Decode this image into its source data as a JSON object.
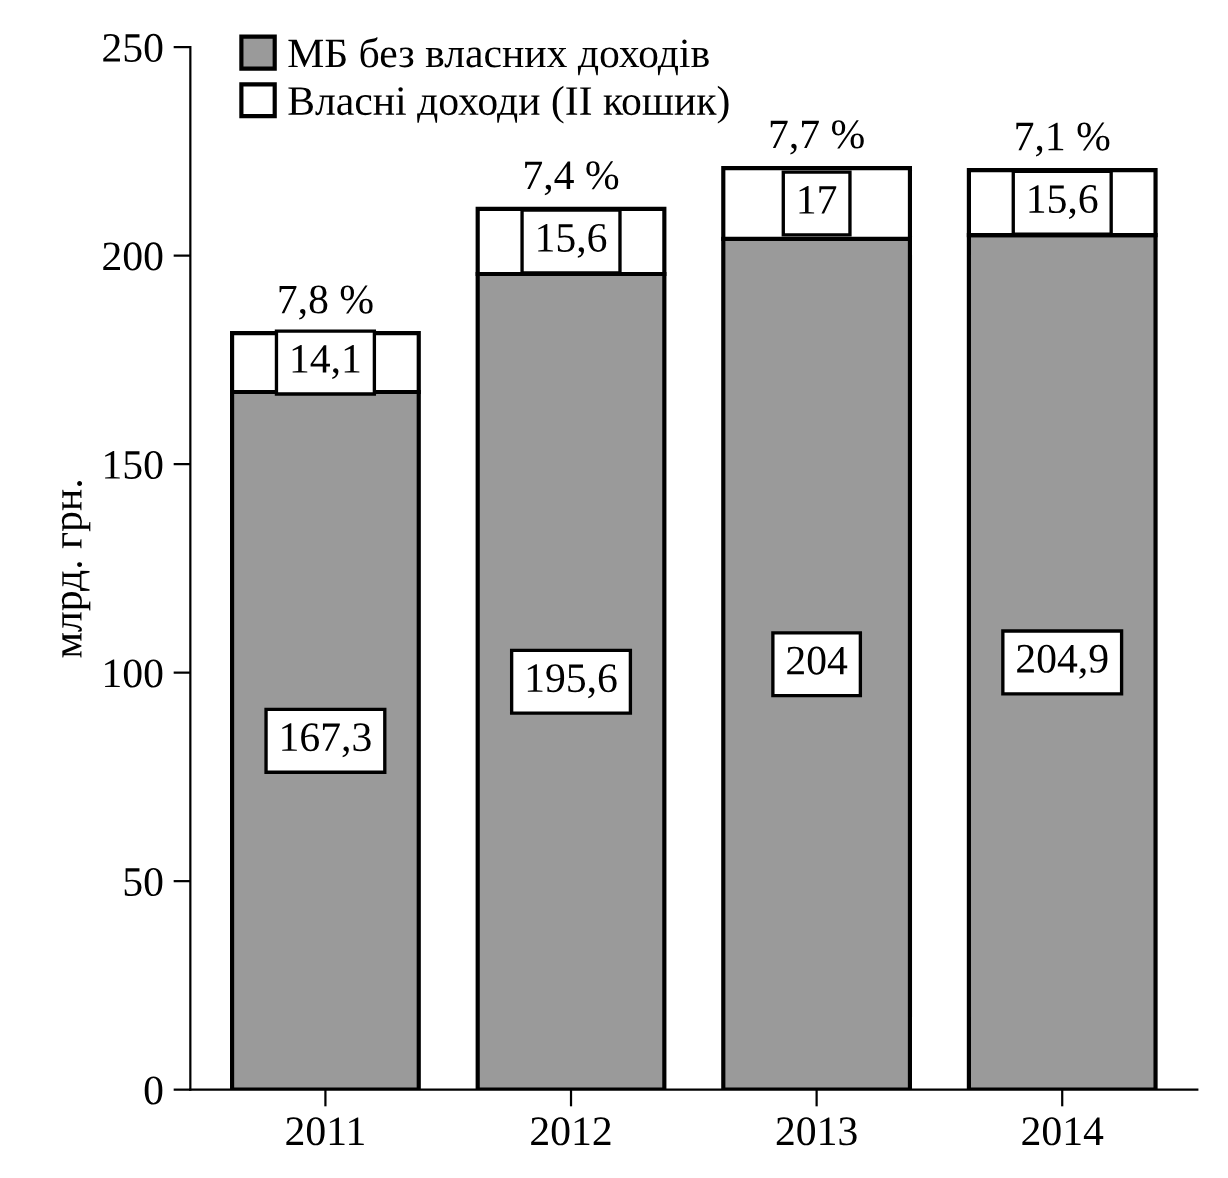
{
  "chart_data": {
    "type": "bar",
    "stacked": true,
    "ylabel": "млрд. грн.",
    "categories": [
      "2011",
      "2012",
      "2013",
      "2014"
    ],
    "series": [
      {
        "name": "МБ без власних доходів",
        "color": "#9a9a9a",
        "values": [
          167.3,
          195.6,
          204,
          204.9
        ],
        "value_labels": [
          "167,3",
          "195,6",
          "204",
          "204,9"
        ]
      },
      {
        "name": "Власні доходи (II кошик)",
        "color": "#ffffff",
        "values": [
          14.1,
          15.6,
          17,
          15.6
        ],
        "value_labels": [
          "14,1",
          "15,6",
          "17",
          "15,6"
        ]
      }
    ],
    "ylim": [
      0,
      250
    ],
    "yticks": [
      0,
      50,
      100,
      150,
      200,
      250
    ],
    "grid": false,
    "legend": "top left",
    "annotations": [
      {
        "text": "7,8 %",
        "x": "2011",
        "y": 181.4
      },
      {
        "text": "7,4 %",
        "x": "2012",
        "y": 211.2
      },
      {
        "text": "7,7 %",
        "x": "2013",
        "y": 221
      },
      {
        "text": "7,1 %",
        "x": "2014",
        "y": 220.5
      }
    ]
  }
}
